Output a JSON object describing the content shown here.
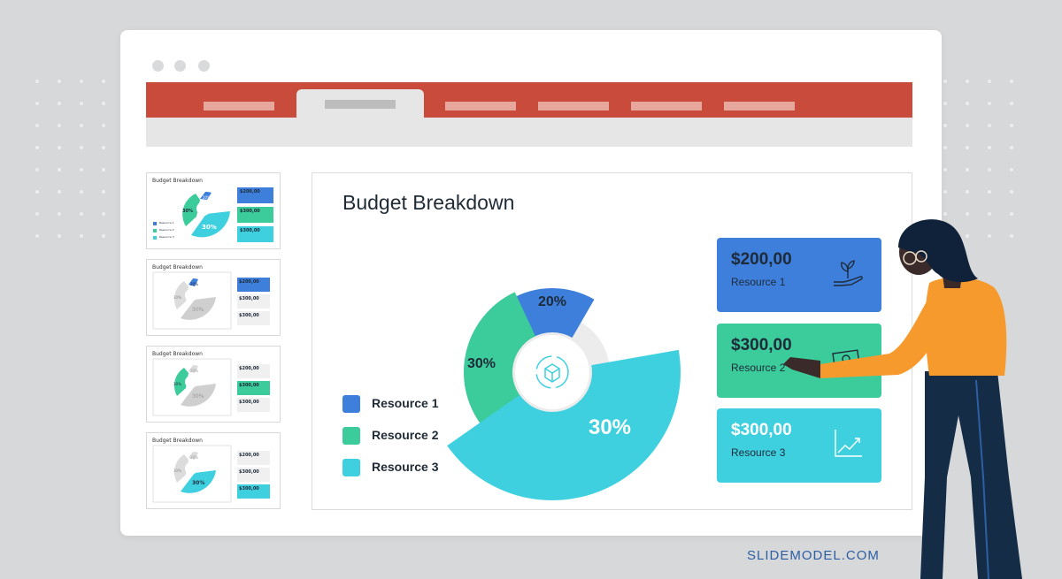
{
  "window": {
    "ribbon_color": "#c84b3b",
    "tabs_count_note": ""
  },
  "slide": {
    "title": "Budget Breakdown"
  },
  "legend": [
    {
      "label": "Resource 1",
      "color": "#3e7fdc"
    },
    {
      "label": "Resource 2",
      "color": "#3ccb9a"
    },
    {
      "label": "Resource 3",
      "color": "#3fd0e0"
    }
  ],
  "chart_data": {
    "type": "pie",
    "slices": [
      {
        "label": "20%",
        "value": 20,
        "color": "#3e7fdc",
        "series": "Resource 1"
      },
      {
        "label": "30%",
        "value": 30,
        "color": "#3ccb9a",
        "series": "Resource 2"
      },
      {
        "label": "30%",
        "value": 30,
        "color": "#3fd0e0",
        "series": "Resource 3"
      }
    ]
  },
  "cards": [
    {
      "amount": "$200,00",
      "label": "Resource 1",
      "color": "#3e7fdc",
      "icon": "hand-plant-icon"
    },
    {
      "amount": "$300,00",
      "label": "Resource 2",
      "color": "#3ccb9a",
      "icon": "money-icon"
    },
    {
      "amount": "$300,00",
      "label": "Resource 3",
      "color": "#3fd0e0",
      "icon": "chart-growth-icon"
    }
  ],
  "thumbnails": [
    {
      "title": "Budget Breakdown",
      "amounts": [
        "$200,00",
        "$300,00",
        "$300,00"
      ],
      "pct": [
        "20%",
        "30%",
        "30%"
      ],
      "legend": [
        "Resource 1",
        "Resource 2",
        "Resource 3"
      ]
    },
    {
      "title": "Budget Breakdown",
      "amounts": [
        "$200,00",
        "$300,00",
        "$300,00"
      ],
      "pct": [
        "20%",
        "30%",
        "30%"
      ]
    },
    {
      "title": "Budget Breakdown",
      "amounts": [
        "$200,00",
        "$300,00",
        "$300,00"
      ],
      "pct": [
        "20%",
        "30%",
        "30%"
      ]
    },
    {
      "title": "Budget Breakdown",
      "amounts": [
        "$200,00",
        "$300,00",
        "$300,00"
      ],
      "pct": [
        "20%",
        "30%",
        "30%"
      ]
    }
  ],
  "brand": "SLIDEMODEL.COM"
}
